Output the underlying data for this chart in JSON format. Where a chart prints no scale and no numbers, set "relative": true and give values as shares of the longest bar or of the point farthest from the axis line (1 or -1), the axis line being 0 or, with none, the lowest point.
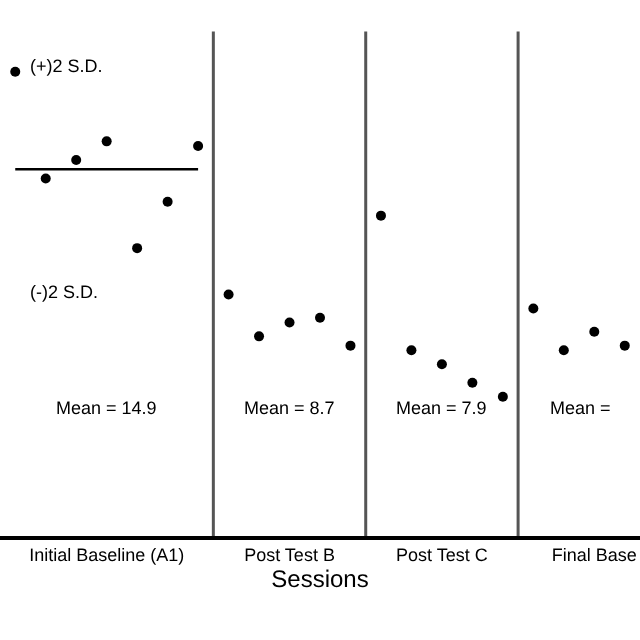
{
  "chart_data": {
    "type": "scatter",
    "relative": true,
    "xlabel": "Sessions",
    "marker": "circle",
    "categories": [
      null,
      null,
      null,
      "Initial Baseline (A1)",
      null,
      null,
      null,
      null,
      null,
      "Post Test B",
      null,
      null,
      null,
      null,
      "Post Test C",
      null,
      null,
      null,
      null,
      "Final Base",
      null
    ],
    "series": [
      {
        "color": "#000000",
        "values": [
          1,
          0.77,
          0.81,
          0.85,
          0.62,
          0.72,
          0.84,
          null,
          null,
          null,
          null,
          null,
          null,
          null,
          null,
          null,
          null,
          null,
          null,
          null,
          null
        ]
      },
      {
        "color": "#000000",
        "values": [
          null,
          null,
          null,
          null,
          null,
          null,
          null,
          0.52,
          0.43,
          0.46,
          0.47,
          0.41,
          null,
          null,
          null,
          null,
          null,
          null,
          null,
          null,
          null
        ]
      },
      {
        "color": "#000000",
        "values": [
          null,
          null,
          null,
          null,
          null,
          null,
          null,
          null,
          null,
          null,
          null,
          null,
          0.69,
          0.4,
          0.37,
          0.33,
          0.3,
          null,
          null,
          null,
          null
        ]
      },
      {
        "color": "#000000",
        "values": [
          null,
          null,
          null,
          null,
          null,
          null,
          null,
          null,
          null,
          null,
          null,
          null,
          null,
          null,
          null,
          null,
          null,
          0.49,
          0.4,
          0.44,
          0.41
        ]
      },
      {
        "type": "line",
        "color": "#000000",
        "marker": "none",
        "values": [
          0.79,
          0.79,
          0.79,
          0.79,
          0.79,
          0.79,
          0.79,
          null,
          null,
          null,
          null,
          null,
          null,
          null,
          null,
          null,
          null,
          null,
          null,
          null,
          null
        ]
      }
    ],
    "annotations": [
      "(+)2 S.D.",
      "(-)2 S.D.",
      "Mean = 14.9",
      "Mean = 8.7",
      "Mean = 7.9",
      "Mean ="
    ]
  }
}
